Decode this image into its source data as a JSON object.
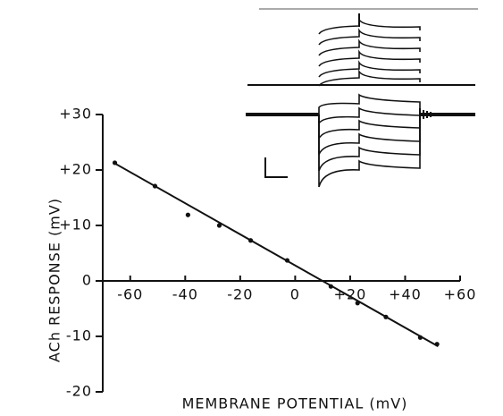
{
  "chart_data": {
    "type": "scatter",
    "xlabel": "MEMBRANE POTENTIAL (mV)",
    "ylabel": "ACh RESPONSE (mV)",
    "color": "#111111",
    "x": [
      -65.6,
      -51,
      -39,
      -27.6,
      -16.2,
      -2.9,
      13,
      22.7,
      33,
      45.5,
      51.6
    ],
    "values": [
      21.3,
      17.1,
      11.9,
      10,
      7.3,
      3.7,
      -1,
      -4,
      -6.5,
      -10.2,
      -11.4
    ],
    "fit": {
      "x": [
        -66,
        52
      ],
      "values": [
        21.3,
        -11.8
      ]
    },
    "xlim": [
      -70,
      60
    ],
    "ylim": [
      -20,
      30
    ],
    "xticks": [
      -60,
      -40,
      -20,
      0,
      {
        "value": 20,
        "label": "+20"
      },
      {
        "value": 40,
        "label": "+40"
      },
      {
        "value": 60,
        "label": "+60"
      }
    ],
    "yticks": [
      -20,
      -10,
      0,
      {
        "value": 10,
        "label": "+10"
      },
      {
        "value": 20,
        "label": "+20"
      },
      {
        "value": 30,
        "label": "+30"
      }
    ]
  }
}
